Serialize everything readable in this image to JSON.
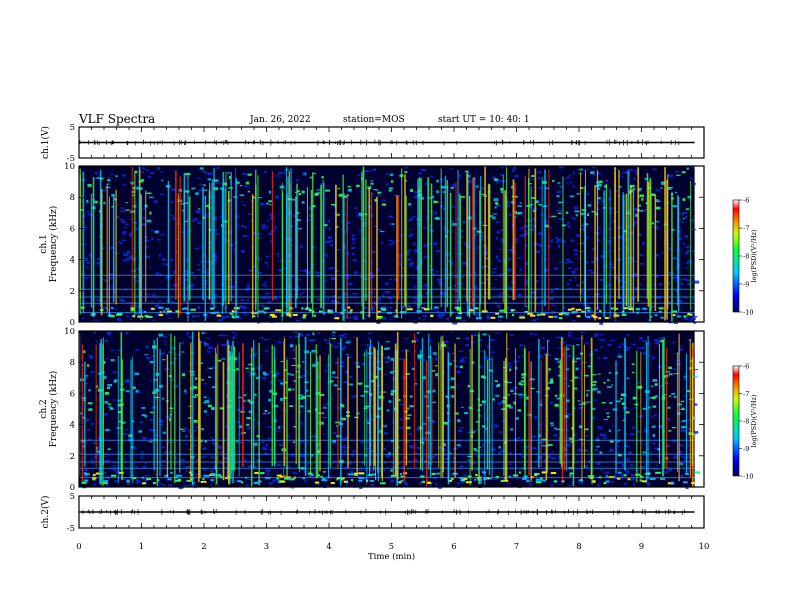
{
  "header": {
    "title": "VLF Spectra",
    "date": "Jan. 26, 2022",
    "station": "station=MOS",
    "start": "start UT =  10: 40: 1"
  },
  "chart_data": [
    {
      "type": "line",
      "ylabel": "ch.1(V)",
      "ylim": [
        -5,
        5
      ],
      "yticks": [
        "5",
        "-5"
      ],
      "x": [
        0,
        9.85
      ],
      "values": [
        0,
        0
      ]
    },
    {
      "type": "heatmap",
      "ylabel": "ch.1\nFrequency (kHz)",
      "ylim": [
        0,
        10
      ],
      "yticks": [
        "0",
        "2",
        "4",
        "6",
        "8",
        "10"
      ],
      "xlim": [
        0,
        9.85
      ],
      "colorbar": {
        "label": "log(PSD)(V²/Hz)",
        "range": [
          -10,
          -6
        ],
        "ticks": [
          "-6",
          "-7",
          "-8",
          "-9",
          "-10"
        ]
      }
    },
    {
      "type": "heatmap",
      "ylabel": "ch.2\nFrequency (kHz)",
      "ylim": [
        0,
        10
      ],
      "yticks": [
        "0",
        "2",
        "4",
        "6",
        "8",
        "10"
      ],
      "xlim": [
        0,
        9.85
      ],
      "colorbar": {
        "label": "log(PSD)(V²/Hz)",
        "range": [
          -10,
          -6
        ],
        "ticks": [
          "-6",
          "-7",
          "-8",
          "-9",
          "-10"
        ]
      }
    },
    {
      "type": "line",
      "ylabel": "ch.2(V)",
      "ylim": [
        -5,
        5
      ],
      "yticks": [
        "5",
        "-5"
      ],
      "x": [
        0,
        9.85
      ],
      "values": [
        0,
        0
      ]
    }
  ],
  "xaxis": {
    "label": "Time (min)",
    "range": [
      0,
      10
    ],
    "ticks": [
      "0",
      "1",
      "2",
      "3",
      "4",
      "5",
      "6",
      "7",
      "8",
      "9",
      "10"
    ]
  },
  "colors": {
    "background": "#000030",
    "low": "#0000ff",
    "mid": "#00ff66",
    "high": "#ff0000"
  }
}
